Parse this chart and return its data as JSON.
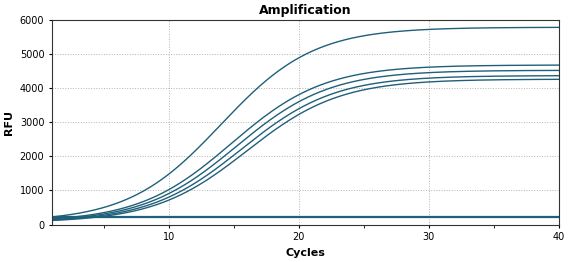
{
  "title": "Amplification",
  "xlabel": "Cycles",
  "ylabel": "RFU",
  "xlim": [
    1,
    40
  ],
  "ylim": [
    0,
    6000
  ],
  "xticks": [
    10,
    20,
    30,
    40
  ],
  "yticks": [
    0,
    1000,
    2000,
    3000,
    4000,
    5000,
    6000
  ],
  "line_color": "#1f5f7a",
  "bg_color": "#ffffff",
  "plot_bg_color": "#ffffff",
  "curves": [
    {
      "L": 5700,
      "k": 0.28,
      "x0": 14.0,
      "base": 80
    },
    {
      "L": 4600,
      "k": 0.28,
      "x0": 14.8,
      "base": 75
    },
    {
      "L": 4450,
      "k": 0.28,
      "x0": 15.2,
      "base": 70
    },
    {
      "L": 4300,
      "k": 0.28,
      "x0": 15.6,
      "base": 65
    },
    {
      "L": 4200,
      "k": 0.28,
      "x0": 16.0,
      "base": 60
    }
  ],
  "flat_line_value": 210,
  "flat_base": 210,
  "linewidth": 1.0
}
